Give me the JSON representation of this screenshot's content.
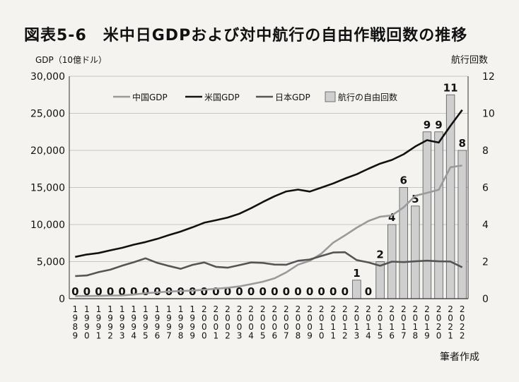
{
  "title": "図表5-6　米中日GDPおよび対中航行の自由作戦回数の推移",
  "source": "筆者作成",
  "chart_data": {
    "type": "bar",
    "ylabel_left": "GDP（10億ドル）",
    "ylabel_right": "航行回数",
    "ylim_left": [
      0,
      30000
    ],
    "ylim_right": [
      0,
      12
    ],
    "yticks_left": [
      "0",
      "5,000",
      "10,000",
      "15,000",
      "20,000",
      "25,000",
      "30,000"
    ],
    "yticks_right": [
      "0",
      "2",
      "4",
      "6",
      "8",
      "10",
      "12"
    ],
    "legend_position": "top",
    "categories": [
      "1989",
      "1990",
      "1991",
      "1992",
      "1993",
      "1994",
      "1995",
      "1996",
      "1997",
      "1998",
      "1999",
      "2000",
      "2001",
      "2002",
      "2003",
      "2004",
      "2005",
      "2006",
      "2007",
      "2008",
      "2009",
      "2010",
      "2011",
      "2012",
      "2013",
      "2014",
      "2015",
      "2016",
      "2017",
      "2018",
      "2019",
      "2020",
      "2021",
      "2022"
    ],
    "series": [
      {
        "name": "中国GDP",
        "type": "line",
        "axis": "left",
        "color": "#9a9a9a",
        "values": [
          350,
          360,
          380,
          420,
          440,
          560,
          730,
          860,
          960,
          1030,
          1090,
          1210,
          1340,
          1470,
          1660,
          1960,
          2290,
          2750,
          3550,
          4590,
          5100,
          6090,
          7550,
          8530,
          9570,
          10480,
          11060,
          11230,
          12310,
          13890,
          14280,
          14690,
          17730,
          17960
        ]
      },
      {
        "name": "米国GDP",
        "type": "line",
        "axis": "left",
        "color": "#111111",
        "values": [
          5640,
          5960,
          6160,
          6520,
          6860,
          7290,
          7640,
          8070,
          8580,
          9060,
          9630,
          10250,
          10580,
          10940,
          11460,
          12210,
          13040,
          13820,
          14470,
          14710,
          14450,
          14990,
          15540,
          16200,
          16780,
          17520,
          18220,
          18710,
          19480,
          20530,
          21380,
          21060,
          23320,
          25460
        ]
      },
      {
        "name": "日本GDP",
        "type": "line",
        "axis": "left",
        "color": "#555555",
        "values": [
          3050,
          3130,
          3580,
          3910,
          4450,
          4910,
          5450,
          4830,
          4410,
          4030,
          4560,
          4890,
          4300,
          4180,
          4520,
          4890,
          4830,
          4600,
          4580,
          5110,
          5290,
          5760,
          6230,
          6270,
          5210,
          4900,
          4440,
          5000,
          4930,
          5040,
          5120,
          5040,
          5010,
          4230
        ]
      },
      {
        "name": "航行の自由回数",
        "type": "bar",
        "axis": "right",
        "color": "#cfcfcf",
        "values": [
          0,
          0,
          0,
          0,
          0,
          0,
          0,
          0,
          0,
          0,
          0,
          0,
          0,
          0,
          0,
          0,
          0,
          0,
          0,
          0,
          0,
          0,
          0,
          0,
          1,
          0,
          2,
          4,
          6,
          5,
          9,
          9,
          11,
          8
        ]
      }
    ]
  }
}
